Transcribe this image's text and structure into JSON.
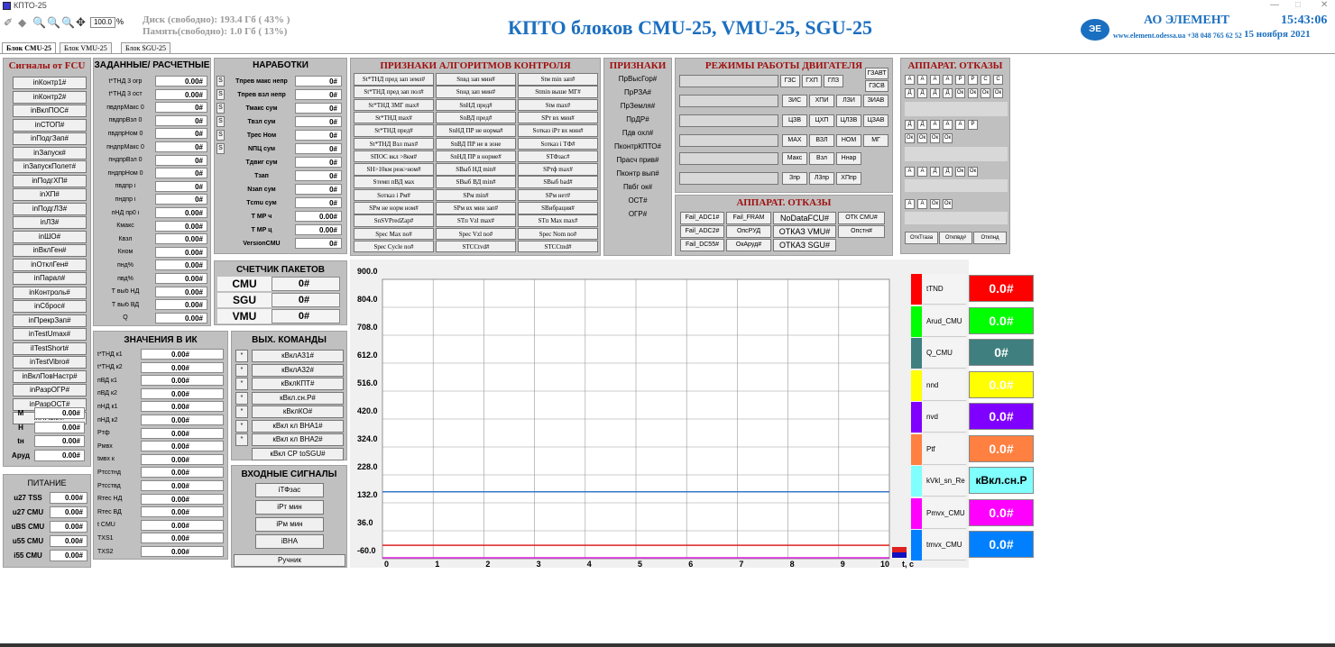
{
  "window": {
    "title": "КПТО-25"
  },
  "toolbar": {
    "zoom": "100.0",
    "percent": "%"
  },
  "disk": {
    "line1": "Диск (свободно): 193.4 Гб ( 43% )",
    "line2": "Память(свободно): 1.0 Гб ( 13%)"
  },
  "header": {
    "title": "КПТО блоков CMU-25, VMU-25, SGU-25",
    "company": "АО ЭЛЕМЕНТ",
    "site": "www.element.odessa.ua +38 048 765 62 52",
    "time": "15:43:06",
    "date": "15 ноября 2021"
  },
  "tabs": [
    "Блок CMU-25",
    "Блок VMU-25",
    "Блок SGU-25"
  ],
  "fcu": {
    "title": "Сигналы от FCU",
    "items": [
      "inКонтр1#",
      "inКонтр2#",
      "inВклПОС#",
      "inСТОП#",
      "inПодгЗап#",
      "inЗапуск#",
      "inЗапускПолет#",
      "inПодгХП#",
      "inХП#",
      "inПодгЛЗ#",
      "inЛЗ#",
      "inШО#",
      "inВклГен#",
      "inОтклГен#",
      "inПарал#",
      "inКонтроль#",
      "inСброс#",
      "inПрекрЗап#",
      "inTestUmax#",
      "iITestShort#",
      "inTestVibro#",
      "inВклПовНастр#",
      "inРазрОГР#",
      "inРазрОСТ#",
      "inПНвкл#"
    ],
    "values": [
      {
        "label": "М",
        "value": "0.00#"
      },
      {
        "label": "Н",
        "value": "0.00#"
      },
      {
        "label": "tн",
        "value": "0.00#"
      },
      {
        "label": "Аруд",
        "value": "0.00#"
      }
    ]
  },
  "power": {
    "title": "ПИТАНИЕ",
    "items": [
      {
        "label": "u27 TSS",
        "value": "0.00#"
      },
      {
        "label": "u27 CMU",
        "value": "0.00#"
      },
      {
        "label": "uBS CMU",
        "value": "0.00#"
      },
      {
        "label": "u55 CMU",
        "value": "0.00#"
      },
      {
        "label": "i55 CMU",
        "value": "0.00#"
      }
    ]
  },
  "setp": {
    "title": "ЗАДАННЫЕ/ РАСЧЕТНЫЕ",
    "items": [
      {
        "label": "t*ТНД 3 огр",
        "value": "0.00#"
      },
      {
        "label": "t*ТНД 3 ост",
        "value": "0.00#"
      },
      {
        "label": "пвдпрМакс 0",
        "value": "0#"
      },
      {
        "label": "пвдпрВзл 0",
        "value": "0#"
      },
      {
        "label": "пвдпрНом 0",
        "value": "0#"
      },
      {
        "label": "пндпрМакс 0",
        "value": "0#"
      },
      {
        "label": "пндпрВзл 0",
        "value": "0#"
      },
      {
        "label": "пндпрНом 0",
        "value": "0#"
      },
      {
        "label": "пвдпр i",
        "value": "0#"
      },
      {
        "label": "пндпр i",
        "value": "0#"
      },
      {
        "label": "пНД пр0 i",
        "value": "0.00#"
      },
      {
        "label": "Кмакс",
        "value": "0.00#"
      },
      {
        "label": "Квзл",
        "value": "0.00#"
      },
      {
        "label": "Кном",
        "value": "0.00#"
      },
      {
        "label": "пнд%",
        "value": "0.00#"
      },
      {
        "label": "пвд%",
        "value": "0.00#"
      },
      {
        "label": "Т выб НД",
        "value": "0.00#"
      },
      {
        "label": "Т выб ВД",
        "value": "0.00#"
      },
      {
        "label": "Q",
        "value": "0.00#"
      }
    ]
  },
  "ik": {
    "title": "ЗНАЧЕНИЯ В ИК",
    "items": [
      {
        "label": "t*ТНД к1",
        "value": "0.00#"
      },
      {
        "label": "t*ТНД к2",
        "value": "0.00#"
      },
      {
        "label": "пВД к1",
        "value": "0.00#"
      },
      {
        "label": "пВД к2",
        "value": "0.00#"
      },
      {
        "label": "пНД к1",
        "value": "0.00#"
      },
      {
        "label": "пНД к2",
        "value": "0.00#"
      },
      {
        "label": "Ртф",
        "value": "0.00#"
      },
      {
        "label": "Рмвх",
        "value": "0.00#"
      },
      {
        "label": "tмвх к",
        "value": "0.00#"
      },
      {
        "label": "Ртсстнд",
        "value": "0.00#"
      },
      {
        "label": "Ртсствд",
        "value": "0.00#"
      },
      {
        "label": "Rтес НД",
        "value": "0.00#"
      },
      {
        "label": "Rтес ВД",
        "value": "0.00#"
      },
      {
        "label": "t CMU",
        "value": "0.00#"
      },
      {
        "label": "TXS1",
        "value": "0.00#"
      },
      {
        "label": "TXS2",
        "value": "0.00#"
      }
    ]
  },
  "nar": {
    "title": "НАРАБОТКИ",
    "s": "S",
    "items": [
      {
        "label": "Тпрев макс непр",
        "value": "0#",
        "s": true
      },
      {
        "label": "Тпрев взл непр",
        "value": "0#",
        "s": true
      },
      {
        "label": "Тмакс сум",
        "value": "0#",
        "s": true
      },
      {
        "label": "Твзл сум",
        "value": "0#",
        "s": true
      },
      {
        "label": "Трес Ном",
        "value": "0#",
        "s": true
      },
      {
        "label": "NПЦ сум",
        "value": "0#",
        "s": true
      },
      {
        "label": "Тдвиг сум",
        "value": "0#",
        "s": false
      },
      {
        "label": "Тзап",
        "value": "0#",
        "s": false
      },
      {
        "label": "Nзап сум",
        "value": "0#",
        "s": false
      },
      {
        "label": "Тcmu сум",
        "value": "0#",
        "s": false
      },
      {
        "label": "Т МР ч",
        "value": "0.00#",
        "s": false
      },
      {
        "label": "Т МР ц",
        "value": "0.00#",
        "s": false
      },
      {
        "label": "VersionCMU",
        "value": "0#",
        "s": false
      }
    ]
  },
  "counter": {
    "title": "СЧЕТЧИК ПАКЕТОВ",
    "items": [
      {
        "label": "CMU",
        "value": "0#"
      },
      {
        "label": "SGU",
        "value": "0#"
      },
      {
        "label": "VMU",
        "value": "0#"
      }
    ]
  },
  "out": {
    "title": "ВЫХ. КОМАНДЫ",
    "star": "*",
    "items": [
      "кВклА31#",
      "кВклА32#",
      "кВклКПТ#",
      "кВкл.сн.Р#",
      "кВклКО#",
      "кВкл кл ВНА1#",
      "кВкл кл ВНА2#"
    ],
    "last": "кВкл СР toSGU#"
  },
  "inp": {
    "title": "ВХОДНЫЕ СИГНАЛЫ",
    "items": [
      "iТФзас",
      "iРт мин",
      "iРм мин",
      "iВНА"
    ],
    "manual": "Ручник"
  },
  "alg": {
    "title": "ПРИЗНАКИ АЛГОРИТМОВ КОНТРОЛЯ",
    "rows": [
      [
        "St*ТНД пред зап земл#",
        "Snвд зап мин#",
        "Stм min зап#"
      ],
      [
        "St*ТНД пред зап пол#",
        "Snнд зап мин#",
        "Stmin выше МГ#"
      ],
      [
        "St*ТНД ЗМГ max#",
        "SnНД пред#",
        "Stм max#"
      ],
      [
        "St*ТНД max#",
        "SnВД пред#",
        "SPт вх мин#"
      ],
      [
        "St*ТНД пред#",
        "SnНД ПР не норма#",
        "Sотказ iPт вх мин#"
      ],
      [
        "St*ТНД Взл max#",
        "SnВД ПР не в зоне",
        "Sотказ i ТФ#"
      ],
      [
        "SПОС вкл >8км#",
        "SnНД ПР в норме#",
        "SТФзас#"
      ],
      [
        "SН>10км реж>ном#",
        "SВыб НД min#",
        "SPтф max#"
      ],
      [
        "Sтемп пВД мах",
        "SВыб ВД min#",
        "SВыб bad#"
      ],
      [
        "Sотказ i Рм#",
        "SPм min#",
        "SPм нет#"
      ],
      [
        "SPм не норм ном#",
        "SPм вх мин зап#",
        "SВибрация#"
      ],
      [
        "SnSVPredZap#",
        "STп Vzl max#",
        "STп Max max#"
      ],
      [
        "Spec Max no#",
        "Spec Vzl no#",
        "Spec Nom no#"
      ],
      [
        "Spec Cycle no#",
        "STCCtvd#",
        "STCCtnd#"
      ]
    ]
  },
  "flags": {
    "title": "ПРИЗНАКИ",
    "items": [
      "ПрВысГор#",
      "ПрРЗА#",
      "ПрЗемля#",
      "ПрДР#",
      "Пдв охл#",
      "ПконтрКПТО#",
      "Прасч прив#",
      "Пконтр вып#",
      "Пвбг ок#",
      "ОСТ#",
      "ОГР#"
    ]
  },
  "modes": {
    "title": "РЕЖИМЫ РАБОТЫ ДВИГАТЕЛЯ",
    "r1": [
      "ГЗС",
      "ГХП",
      "ГЛЗ"
    ],
    "r1b": [
      "ГЗАВТ",
      "ГЗСВ"
    ],
    "r2": [
      "ЗИС",
      "ХПИ",
      "ЛЗИ",
      "ЗИАВ"
    ],
    "r3": [
      "ЦЗВ",
      "ЦХП",
      "ЦЛЗВ",
      "ЦЗАВ"
    ],
    "r4": [
      "МАХ",
      "ВЗЛ",
      "НОМ",
      "МГ"
    ],
    "r5": [
      "Макс",
      "Взл",
      "Ннар"
    ],
    "r6": [
      "Зпр",
      "Л3пр",
      "ХПпр"
    ]
  },
  "faults": {
    "title": "АППАРАТ. ОТКАЗЫ",
    "rows": [
      [
        "Fail_ADC1#",
        "Fail_FRAM",
        "NoDataFCU#",
        "ОТК CMU#"
      ],
      [
        "Fail_ADC2#",
        "ОпсРУД",
        "ОТКАЗ VMU#",
        "Опстн#"
      ],
      [
        "Fail_DC55#",
        "ОкАруд#",
        "ОТКАЗ SGU#"
      ]
    ]
  },
  "faults2": {
    "title": "АППАРАТ. ОТКАЗЫ",
    "g1a": [
      "А",
      "А",
      "А",
      "А",
      "Р",
      "Р",
      "С",
      "С"
    ],
    "g1b": [
      "Д",
      "Д",
      "Д",
      "Д",
      "Ок",
      "Ок",
      "Ок",
      "Ок"
    ],
    "g2a": [
      "Д",
      "Д",
      "А",
      "А",
      "А",
      "Р"
    ],
    "g2b": [
      "Ок",
      "Ок",
      "Ок",
      "Ок"
    ],
    "g3": [
      "А",
      "А",
      "Д",
      "Д",
      "Ок",
      "Ок"
    ],
    "g4": [
      "А",
      "А",
      "Ок",
      "Ок"
    ],
    "btns": [
      "ОткТгаза",
      "Откпвд#",
      "Откпнд"
    ]
  },
  "chart_data": {
    "type": "line",
    "yticks": [
      "900.0",
      "804.0",
      "708.0",
      "612.0",
      "516.0",
      "420.0",
      "324.0",
      "228.0",
      "132.0",
      "36.0",
      "-60.0"
    ],
    "xticks": [
      "0",
      "1",
      "2",
      "3",
      "4",
      "5",
      "6",
      "7",
      "8",
      "9",
      "10"
    ],
    "xlabel": "t, c",
    "ylim": [
      -60,
      900
    ],
    "xlim": [
      0,
      10
    ],
    "series": [
      {
        "name": "tTND",
        "color": "#3a78c8",
        "y": 170
      },
      {
        "name": "Arud_CMU",
        "color": "#e02020",
        "y": -14
      },
      {
        "name": "nvd",
        "color": "#e020e0",
        "y": -60
      }
    ]
  },
  "legend": [
    {
      "name": "tTND",
      "color": "#ff0000",
      "value": "0.0#"
    },
    {
      "name": "Arud_CMU",
      "color": "#00ff00",
      "value": "0.0#"
    },
    {
      "name": "Q_CMU",
      "color": "#3f7f7f",
      "value": "0#"
    },
    {
      "name": "nnd",
      "color": "#ffff00",
      "value": "0.0#"
    },
    {
      "name": "nvd",
      "color": "#8000ff",
      "value": "0.0#"
    },
    {
      "name": "Ptf",
      "color": "#ff8040",
      "value": "0.0#"
    },
    {
      "name": "kVkl_sn_Re",
      "color": "#80ffff",
      "value": "кВкл.сн.Р"
    },
    {
      "name": "Pmvx_CMU",
      "color": "#ff00ff",
      "value": "0.0#"
    },
    {
      "name": "tmvx_CMU",
      "color": "#0080ff",
      "value": "0.0#"
    }
  ]
}
